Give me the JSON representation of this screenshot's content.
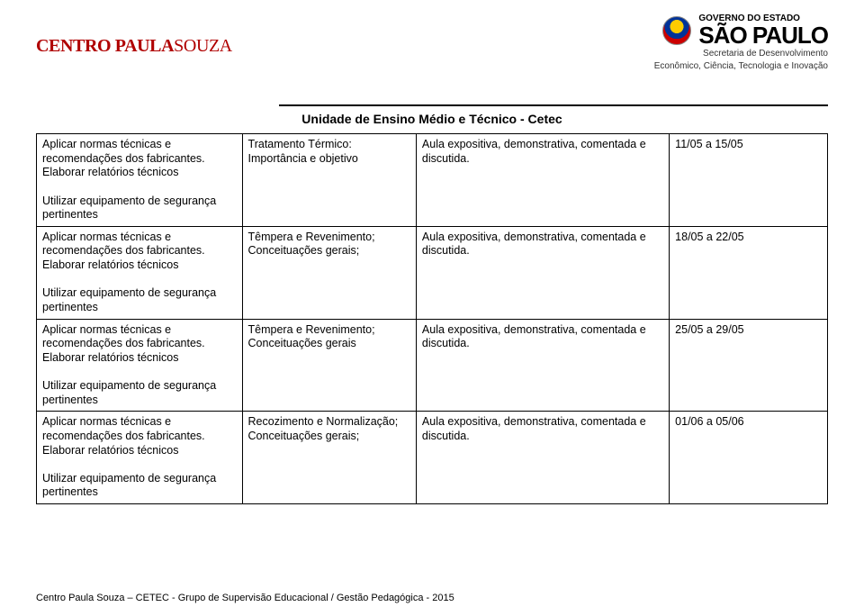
{
  "header": {
    "logo_left_bold": "CENTRO PAULA",
    "logo_left_light": " SOUZA",
    "gov_small": "GOVERNO DO ESTADO",
    "gov_sp": "SÃO PAULO",
    "gov_sub1": "Secretaria de Desenvolvimento",
    "gov_sub2": "Econômico, Ciência, Tecnologia e Inovação",
    "unit_title": "Unidade de Ensino Médio e Técnico - Cetec"
  },
  "rows": [
    {
      "objectives": "Aplicar normas técnicas e recomendações dos fabricantes.\nElaborar relatórios técnicos\n\nUtilizar equipamento de segurança pertinentes",
      "content": "Tratamento Térmico: Importância e objetivo",
      "method": "Aula expositiva, demonstrativa, comentada e discutida.",
      "date": "11/05  a  15/05"
    },
    {
      "objectives": "Aplicar normas técnicas e recomendações dos fabricantes.\nElaborar relatórios técnicos\n\nUtilizar equipamento de segurança pertinentes",
      "content": "Têmpera e Revenimento; Conceituações gerais;",
      "method": "Aula expositiva, demonstrativa, comentada e discutida.",
      "date": "18/05  a  22/05"
    },
    {
      "objectives": "Aplicar normas técnicas e recomendações dos fabricantes.\nElaborar relatórios técnicos\n\nUtilizar equipamento de segurança pertinentes",
      "content": "Têmpera e  Revenimento; Conceituações gerais",
      "method": "Aula expositiva, demonstrativa, comentada e discutida.",
      "date": "25/05  a  29/05"
    },
    {
      "objectives": "Aplicar normas técnicas e recomendações dos fabricantes.\nElaborar relatórios técnicos\n\nUtilizar equipamento de segurança pertinentes",
      "content": "Recozimento e Normalização; Conceituações gerais;",
      "method": "Aula expositiva, demonstrativa, comentada e discutida.",
      "date": "01/06  a  05/06"
    }
  ],
  "footer": "Centro Paula Souza – CETEC - Grupo de Supervisão Educacional / Gestão Pedagógica - 2015"
}
